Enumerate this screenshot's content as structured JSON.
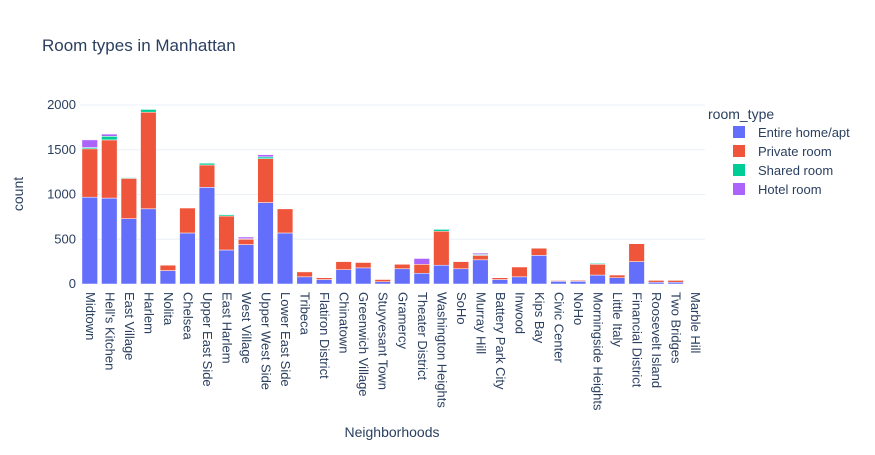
{
  "chart_data": {
    "type": "bar",
    "stacked": true,
    "title": "Room types in Manhattan",
    "xlabel": "Neighborhoods",
    "ylabel": "count",
    "ylim": [
      0,
      2000
    ],
    "yticks": [
      0,
      500,
      1000,
      1500,
      2000
    ],
    "grid": true,
    "legend_title": "room_type",
    "legend_position": "right",
    "categories": [
      "Midtown",
      "Hell's Kitchen",
      "East Village",
      "Harlem",
      "Nolita",
      "Chelsea",
      "Upper East Side",
      "East Harlem",
      "West Village",
      "Upper West Side",
      "Lower East Side",
      "Tribeca",
      "Flatiron District",
      "Chinatown",
      "Greenwich Village",
      "Stuyvesant Town",
      "Gramercy",
      "Theater District",
      "Washington Heights",
      "SoHo",
      "Murray Hill",
      "Battery Park City",
      "Inwood",
      "Kips Bay",
      "Civic Center",
      "NoHo",
      "Morningside Heights",
      "Little Italy",
      "Financial District",
      "Roosevelt Island",
      "Two Bridges",
      "Marble Hill"
    ],
    "series": [
      {
        "name": "Entire home/apt",
        "color": "#636efa",
        "values": [
          970,
          960,
          730,
          840,
          150,
          570,
          1080,
          380,
          440,
          910,
          570,
          80,
          50,
          160,
          180,
          25,
          170,
          120,
          210,
          170,
          270,
          50,
          80,
          320,
          30,
          30,
          100,
          70,
          250,
          20,
          20,
          0
        ]
      },
      {
        "name": "Private room",
        "color": "#ef553b",
        "values": [
          540,
          650,
          450,
          1080,
          60,
          280,
          250,
          380,
          60,
          490,
          270,
          55,
          20,
          90,
          60,
          25,
          50,
          100,
          380,
          80,
          50,
          20,
          110,
          80,
          10,
          10,
          120,
          30,
          200,
          20,
          20,
          5
        ]
      },
      {
        "name": "Shared room",
        "color": "#00cc96",
        "values": [
          15,
          40,
          10,
          30,
          0,
          5,
          20,
          15,
          5,
          20,
          5,
          0,
          0,
          0,
          0,
          0,
          0,
          0,
          20,
          0,
          10,
          0,
          0,
          5,
          0,
          0,
          10,
          0,
          5,
          0,
          0,
          0
        ]
      },
      {
        "name": "Hotel room",
        "color": "#ab63fa",
        "values": [
          85,
          25,
          5,
          0,
          0,
          5,
          0,
          0,
          20,
          25,
          5,
          0,
          0,
          0,
          0,
          0,
          0,
          65,
          0,
          0,
          15,
          0,
          0,
          0,
          5,
          0,
          0,
          0,
          0,
          0,
          0,
          0
        ]
      }
    ]
  },
  "colors": {
    "axis_text": "#2a3f5f",
    "grid": "#ebf0f8",
    "background": "#ffffff"
  }
}
